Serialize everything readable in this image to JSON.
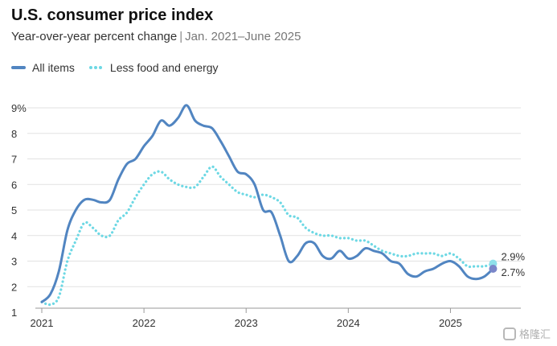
{
  "chart_data": {
    "type": "line",
    "title": "U.S. consumer price index",
    "subtitle": "Year-over-year percent change",
    "subtitle_sep": "|",
    "subtitle_range": "Jan. 2021–June 2025",
    "y_ticks": [
      "9%",
      "8",
      "7",
      "6",
      "5",
      "4",
      "3",
      "2",
      "1"
    ],
    "x_ticks": [
      "2021",
      "2022",
      "2023",
      "2024",
      "2025"
    ],
    "ylim": [
      1,
      9
    ],
    "xlim": [
      2021.0,
      2025.5
    ],
    "series": [
      {
        "name": "All items",
        "color": "#5185c1",
        "style": "solid",
        "end_label": "2.7%",
        "x": [
          2021.0,
          2021.083,
          2021.167,
          2021.25,
          2021.333,
          2021.417,
          2021.5,
          2021.583,
          2021.667,
          2021.75,
          2021.833,
          2021.917,
          2022.0,
          2022.083,
          2022.167,
          2022.25,
          2022.333,
          2022.417,
          2022.5,
          2022.583,
          2022.667,
          2022.75,
          2022.833,
          2022.917,
          2023.0,
          2023.083,
          2023.167,
          2023.25,
          2023.333,
          2023.417,
          2023.5,
          2023.583,
          2023.667,
          2023.75,
          2023.833,
          2023.917,
          2024.0,
          2024.083,
          2024.167,
          2024.25,
          2024.333,
          2024.417,
          2024.5,
          2024.583,
          2024.667,
          2024.75,
          2024.833,
          2024.917,
          2025.0,
          2025.083,
          2025.167,
          2025.25,
          2025.333,
          2025.417
        ],
        "values": [
          1.4,
          1.7,
          2.6,
          4.2,
          5.0,
          5.4,
          5.4,
          5.3,
          5.4,
          6.2,
          6.8,
          7.0,
          7.5,
          7.9,
          8.5,
          8.3,
          8.6,
          9.1,
          8.5,
          8.3,
          8.2,
          7.7,
          7.1,
          6.5,
          6.4,
          6.0,
          5.0,
          4.9,
          4.0,
          3.0,
          3.2,
          3.7,
          3.7,
          3.2,
          3.1,
          3.4,
          3.1,
          3.2,
          3.5,
          3.4,
          3.3,
          3.0,
          2.9,
          2.5,
          2.4,
          2.6,
          2.7,
          2.9,
          3.0,
          2.8,
          2.4,
          2.3,
          2.4,
          2.7
        ]
      },
      {
        "name": "Less food and energy",
        "color": "#6dd8e4",
        "style": "dotted",
        "end_label": "2.9%",
        "x": [
          2021.0,
          2021.083,
          2021.167,
          2021.25,
          2021.333,
          2021.417,
          2021.5,
          2021.583,
          2021.667,
          2021.75,
          2021.833,
          2021.917,
          2022.0,
          2022.083,
          2022.167,
          2022.25,
          2022.333,
          2022.417,
          2022.5,
          2022.583,
          2022.667,
          2022.75,
          2022.833,
          2022.917,
          2023.0,
          2023.083,
          2023.167,
          2023.25,
          2023.333,
          2023.417,
          2023.5,
          2023.583,
          2023.667,
          2023.75,
          2023.833,
          2023.917,
          2024.0,
          2024.083,
          2024.167,
          2024.25,
          2024.333,
          2024.417,
          2024.5,
          2024.583,
          2024.667,
          2024.75,
          2024.833,
          2024.917,
          2025.0,
          2025.083,
          2025.167,
          2025.25,
          2025.333,
          2025.417
        ],
        "values": [
          1.4,
          1.3,
          1.6,
          3.0,
          3.8,
          4.5,
          4.3,
          4.0,
          4.0,
          4.6,
          4.9,
          5.5,
          6.0,
          6.4,
          6.5,
          6.2,
          6.0,
          5.9,
          5.9,
          6.3,
          6.7,
          6.3,
          6.0,
          5.7,
          5.6,
          5.5,
          5.6,
          5.5,
          5.3,
          4.8,
          4.7,
          4.3,
          4.1,
          4.0,
          4.0,
          3.9,
          3.9,
          3.8,
          3.8,
          3.6,
          3.4,
          3.3,
          3.2,
          3.2,
          3.3,
          3.3,
          3.3,
          3.2,
          3.3,
          3.1,
          2.8,
          2.8,
          2.8,
          2.9
        ]
      }
    ]
  },
  "watermark": "格隆汇"
}
